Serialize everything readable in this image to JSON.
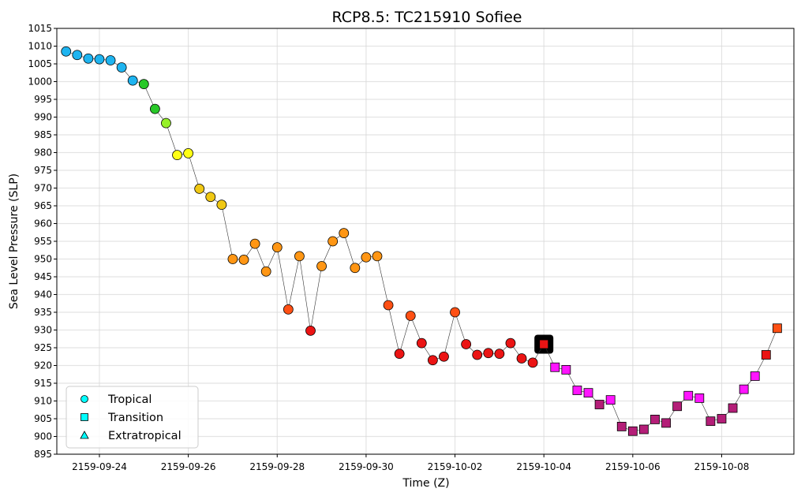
{
  "chart_data": {
    "type": "scatter",
    "title": "RCP8.5: TC215910 Sofiee",
    "xlabel": "Time (Z)",
    "ylabel": "Sea Level Pressure (SLP)",
    "ylim": [
      895,
      1015
    ],
    "xlim": [
      "2159-09-23T01:00",
      "2159-10-09T15:00"
    ],
    "x_ticks": [
      "2159-09-24",
      "2159-09-26",
      "2159-09-28",
      "2159-09-30",
      "2159-10-02",
      "2159-10-04",
      "2159-10-06",
      "2159-10-08"
    ],
    "y_ticks": [
      895,
      900,
      905,
      910,
      915,
      920,
      925,
      930,
      935,
      940,
      945,
      950,
      955,
      960,
      965,
      970,
      975,
      980,
      985,
      990,
      995,
      1000,
      1005,
      1010,
      1015
    ],
    "grid": true,
    "legend": {
      "placement": "lower-left",
      "entries": [
        {
          "label": "Tropical",
          "marker": "circle",
          "color": "#00ffff"
        },
        {
          "label": "Transition",
          "marker": "square",
          "color": "#00ffff"
        },
        {
          "label": "Extratropical",
          "marker": "triangle",
          "color": "#00ffff"
        }
      ]
    },
    "line_color": "#333333",
    "highlight": {
      "x": "2159-10-04T00:00",
      "y": 926.0
    },
    "points": [
      {
        "x": "2159-09-23T06:00",
        "y": 1008.5,
        "marker": "circle",
        "color": "#1eb4f0"
      },
      {
        "x": "2159-09-23T12:00",
        "y": 1007.5,
        "marker": "circle",
        "color": "#1eb4f0"
      },
      {
        "x": "2159-09-23T18:00",
        "y": 1006.5,
        "marker": "circle",
        "color": "#1eb4f0"
      },
      {
        "x": "2159-09-24T00:00",
        "y": 1006.3,
        "marker": "circle",
        "color": "#1eb4f0"
      },
      {
        "x": "2159-09-24T06:00",
        "y": 1006.0,
        "marker": "circle",
        "color": "#1eb4f0"
      },
      {
        "x": "2159-09-24T12:00",
        "y": 1004.0,
        "marker": "circle",
        "color": "#1eb4f0"
      },
      {
        "x": "2159-09-24T18:00",
        "y": 1000.3,
        "marker": "circle",
        "color": "#1eb4f0"
      },
      {
        "x": "2159-09-25T00:00",
        "y": 999.3,
        "marker": "circle",
        "color": "#28c828"
      },
      {
        "x": "2159-09-25T06:00",
        "y": 992.3,
        "marker": "circle",
        "color": "#28c828"
      },
      {
        "x": "2159-09-25T12:00",
        "y": 988.3,
        "marker": "circle",
        "color": "#96f028"
      },
      {
        "x": "2159-09-25T18:00",
        "y": 979.3,
        "marker": "circle",
        "color": "#ffff14"
      },
      {
        "x": "2159-09-26T00:00",
        "y": 979.8,
        "marker": "circle",
        "color": "#ffff14"
      },
      {
        "x": "2159-09-26T06:00",
        "y": 969.8,
        "marker": "circle",
        "color": "#f0c814"
      },
      {
        "x": "2159-09-26T12:00",
        "y": 967.5,
        "marker": "circle",
        "color": "#f0c814"
      },
      {
        "x": "2159-09-26T18:00",
        "y": 965.3,
        "marker": "circle",
        "color": "#f0c814"
      },
      {
        "x": "2159-09-27T00:00",
        "y": 950.0,
        "marker": "circle",
        "color": "#ff9614"
      },
      {
        "x": "2159-09-27T06:00",
        "y": 949.8,
        "marker": "circle",
        "color": "#ff9614"
      },
      {
        "x": "2159-09-27T12:00",
        "y": 954.3,
        "marker": "circle",
        "color": "#ff9614"
      },
      {
        "x": "2159-09-27T18:00",
        "y": 946.5,
        "marker": "circle",
        "color": "#ff9614"
      },
      {
        "x": "2159-09-28T00:00",
        "y": 953.3,
        "marker": "circle",
        "color": "#ff9614"
      },
      {
        "x": "2159-09-28T06:00",
        "y": 935.8,
        "marker": "circle",
        "color": "#ff5014"
      },
      {
        "x": "2159-09-28T12:00",
        "y": 950.8,
        "marker": "circle",
        "color": "#ff9614"
      },
      {
        "x": "2159-09-28T18:00",
        "y": 929.8,
        "marker": "circle",
        "color": "#eb1414"
      },
      {
        "x": "2159-09-29T00:00",
        "y": 948.0,
        "marker": "circle",
        "color": "#ff9614"
      },
      {
        "x": "2159-09-29T06:00",
        "y": 955.0,
        "marker": "circle",
        "color": "#ff9614"
      },
      {
        "x": "2159-09-29T12:00",
        "y": 957.3,
        "marker": "circle",
        "color": "#ff9614"
      },
      {
        "x": "2159-09-29T18:00",
        "y": 947.5,
        "marker": "circle",
        "color": "#ff9614"
      },
      {
        "x": "2159-09-30T00:00",
        "y": 950.5,
        "marker": "circle",
        "color": "#ff9614"
      },
      {
        "x": "2159-09-30T06:00",
        "y": 950.8,
        "marker": "circle",
        "color": "#ff9614"
      },
      {
        "x": "2159-09-30T12:00",
        "y": 937.0,
        "marker": "circle",
        "color": "#ff5014"
      },
      {
        "x": "2159-09-30T18:00",
        "y": 923.3,
        "marker": "circle",
        "color": "#eb1414"
      },
      {
        "x": "2159-10-01T00:00",
        "y": 934.0,
        "marker": "circle",
        "color": "#ff5014"
      },
      {
        "x": "2159-10-01T06:00",
        "y": 926.3,
        "marker": "circle",
        "color": "#eb1414"
      },
      {
        "x": "2159-10-01T12:00",
        "y": 921.5,
        "marker": "circle",
        "color": "#eb1414"
      },
      {
        "x": "2159-10-01T18:00",
        "y": 922.5,
        "marker": "circle",
        "color": "#eb1414"
      },
      {
        "x": "2159-10-02T00:00",
        "y": 935.0,
        "marker": "circle",
        "color": "#ff5014"
      },
      {
        "x": "2159-10-02T06:00",
        "y": 926.0,
        "marker": "circle",
        "color": "#eb1414"
      },
      {
        "x": "2159-10-02T12:00",
        "y": 923.0,
        "marker": "circle",
        "color": "#eb1414"
      },
      {
        "x": "2159-10-02T18:00",
        "y": 923.5,
        "marker": "circle",
        "color": "#eb1414"
      },
      {
        "x": "2159-10-03T00:00",
        "y": 923.3,
        "marker": "circle",
        "color": "#eb1414"
      },
      {
        "x": "2159-10-03T06:00",
        "y": 926.3,
        "marker": "circle",
        "color": "#eb1414"
      },
      {
        "x": "2159-10-03T12:00",
        "y": 922.0,
        "marker": "circle",
        "color": "#eb1414"
      },
      {
        "x": "2159-10-03T18:00",
        "y": 920.8,
        "marker": "circle",
        "color": "#eb1414"
      },
      {
        "x": "2159-10-04T00:00",
        "y": 926.0,
        "marker": "square",
        "color": "#eb1414"
      },
      {
        "x": "2159-10-04T06:00",
        "y": 919.5,
        "marker": "square",
        "color": "#ff14ff"
      },
      {
        "x": "2159-10-04T12:00",
        "y": 918.8,
        "marker": "square",
        "color": "#ff14ff"
      },
      {
        "x": "2159-10-04T18:00",
        "y": 913.0,
        "marker": "square",
        "color": "#ff14ff"
      },
      {
        "x": "2159-10-05T00:00",
        "y": 912.3,
        "marker": "square",
        "color": "#ff14ff"
      },
      {
        "x": "2159-10-05T06:00",
        "y": 909.0,
        "marker": "square",
        "color": "#b41e78"
      },
      {
        "x": "2159-10-05T12:00",
        "y": 910.3,
        "marker": "square",
        "color": "#ff14ff"
      },
      {
        "x": "2159-10-05T18:00",
        "y": 902.8,
        "marker": "square",
        "color": "#b41e78"
      },
      {
        "x": "2159-10-06T00:00",
        "y": 901.5,
        "marker": "square",
        "color": "#b41e78"
      },
      {
        "x": "2159-10-06T06:00",
        "y": 902.0,
        "marker": "square",
        "color": "#b41e78"
      },
      {
        "x": "2159-10-06T12:00",
        "y": 904.8,
        "marker": "square",
        "color": "#b41e78"
      },
      {
        "x": "2159-10-06T18:00",
        "y": 903.8,
        "marker": "square",
        "color": "#b41e78"
      },
      {
        "x": "2159-10-07T00:00",
        "y": 908.5,
        "marker": "square",
        "color": "#b41e78"
      },
      {
        "x": "2159-10-07T06:00",
        "y": 911.5,
        "marker": "square",
        "color": "#ff14ff"
      },
      {
        "x": "2159-10-07T12:00",
        "y": 910.8,
        "marker": "square",
        "color": "#ff14ff"
      },
      {
        "x": "2159-10-07T18:00",
        "y": 904.3,
        "marker": "square",
        "color": "#b41e78"
      },
      {
        "x": "2159-10-08T00:00",
        "y": 905.0,
        "marker": "square",
        "color": "#b41e78"
      },
      {
        "x": "2159-10-08T06:00",
        "y": 908.0,
        "marker": "square",
        "color": "#b41e78"
      },
      {
        "x": "2159-10-08T12:00",
        "y": 913.3,
        "marker": "square",
        "color": "#ff14ff"
      },
      {
        "x": "2159-10-08T18:00",
        "y": 917.0,
        "marker": "square",
        "color": "#ff14ff"
      },
      {
        "x": "2159-10-09T00:00",
        "y": 923.0,
        "marker": "square",
        "color": "#eb1414"
      },
      {
        "x": "2159-10-09T06:00",
        "y": 930.5,
        "marker": "square",
        "color": "#ff5014"
      }
    ]
  }
}
